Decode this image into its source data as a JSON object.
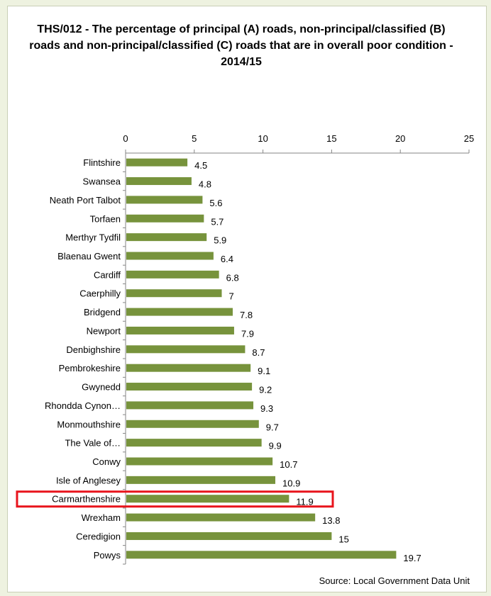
{
  "chart_data": {
    "type": "bar",
    "orientation": "horizontal",
    "title": "THS/012 - The percentage of principal (A) roads, non-principal/classified (B) roads and non-principal/classified (C) roads that are in overall poor condition - 2014/15",
    "xlim": [
      0,
      25
    ],
    "x_ticks": [
      "0",
      "5",
      "10",
      "15",
      "20",
      "25"
    ],
    "axis_position": "top",
    "grid": false,
    "categories": [
      "Flintshire",
      "Swansea",
      "Neath Port Talbot",
      "Torfaen",
      "Merthyr Tydfil",
      "Blaenau Gwent",
      "Cardiff",
      "Caerphilly",
      "Bridgend",
      "Newport",
      "Denbighshire",
      "Pembrokeshire",
      "Gwynedd",
      "Rhondda Cynon…",
      "Monmouthshire",
      "The Vale of…",
      "Conwy",
      "Isle of Anglesey",
      "Carmarthenshire",
      "Wrexham",
      "Ceredigion",
      "Powys"
    ],
    "values": [
      4.5,
      4.8,
      5.6,
      5.7,
      5.9,
      6.4,
      6.8,
      7,
      7.8,
      7.9,
      8.7,
      9.1,
      9.2,
      9.3,
      9.7,
      9.9,
      10.7,
      10.9,
      11.9,
      13.8,
      15,
      19.7
    ],
    "value_labels": [
      "4.5",
      "4.8",
      "5.6",
      "5.7",
      "5.9",
      "6.4",
      "6.8",
      "7",
      "7.8",
      "7.9",
      "8.7",
      "9.1",
      "9.2",
      "9.3",
      "9.7",
      "9.9",
      "10.7",
      "10.9",
      "11.9",
      "13.8",
      "15",
      "19.7"
    ],
    "highlighted_category": "Carmarthenshire",
    "bar_color": "#77933c",
    "highlight_color": "#e8141c"
  },
  "source": "Source: Local Government Data Unit"
}
